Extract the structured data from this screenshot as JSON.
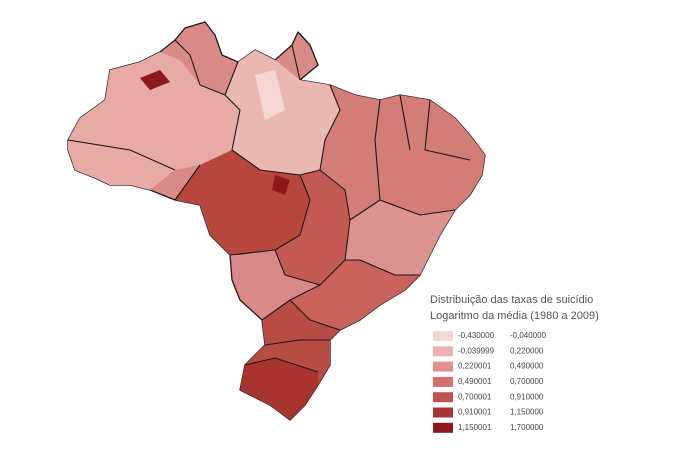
{
  "legend": {
    "title": "Distribuição das taxas de suicídio",
    "subtitle": "Logaritmo da média (1980 a 2009)",
    "classes": [
      {
        "from": "-0,430000",
        "to": "-0,040000",
        "color": "#f6d6d3"
      },
      {
        "from": "-0,039999",
        "to": "0,220000",
        "color": "#eeb3ae"
      },
      {
        "from": "0,220001",
        "to": "0,490000",
        "color": "#e2928c"
      },
      {
        "from": "0,490001",
        "to": "0,700000",
        "color": "#d2716b"
      },
      {
        "from": "0,700001",
        "to": "0,910000",
        "color": "#bf524d"
      },
      {
        "from": "0,910001",
        "to": "1,150000",
        "color": "#a73532"
      },
      {
        "from": "1,150001",
        "to": "1,700000",
        "color": "#8c1a1c"
      }
    ]
  }
}
